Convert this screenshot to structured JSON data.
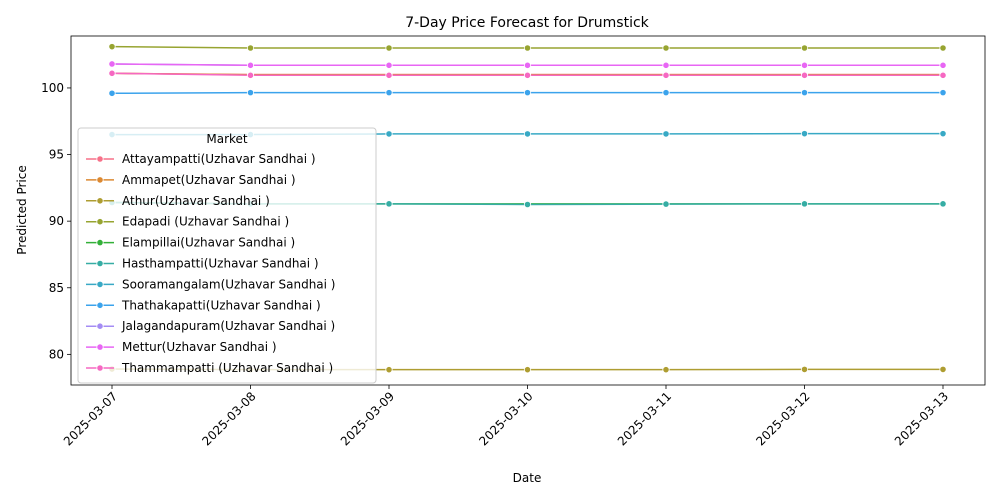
{
  "chart_data": {
    "type": "line",
    "title": "7-Day Price Forecast for Drumstick",
    "xlabel": "Date",
    "ylabel": "Predicted Price",
    "x": [
      "2025-03-07",
      "2025-03-08",
      "2025-03-09",
      "2025-03-10",
      "2025-03-11",
      "2025-03-12",
      "2025-03-13"
    ],
    "ylim": [
      77.7,
      103.9
    ],
    "yticks": [
      80,
      85,
      90,
      95,
      100
    ],
    "grid": false,
    "legend": {
      "title": "Market",
      "placement": "center-left"
    },
    "series": [
      {
        "name": "Attayampatti(Uzhavar Sandhai )",
        "color": "#f77189",
        "values": [
          101.1,
          101.0,
          101.0,
          101.0,
          101.0,
          101.0,
          101.0
        ]
      },
      {
        "name": "Ammapet(Uzhavar Sandhai )",
        "color": "#dc8932",
        "values": [
          101.1,
          101.0,
          101.0,
          101.0,
          101.0,
          101.0,
          101.0
        ]
      },
      {
        "name": "Athur(Uzhavar Sandhai )",
        "color": "#ae9d31",
        "values": [
          78.9,
          78.85,
          78.85,
          78.85,
          78.85,
          78.87,
          78.87
        ]
      },
      {
        "name": "Edapadi (Uzhavar Sandhai )",
        "color": "#97a431",
        "values": [
          103.1,
          103.0,
          103.0,
          103.0,
          103.0,
          103.0,
          103.0
        ]
      },
      {
        "name": "Elampillai(Uzhavar Sandhai )",
        "color": "#33b039",
        "values": [
          91.4,
          91.3,
          91.3,
          91.3,
          91.3,
          91.3,
          91.3
        ]
      },
      {
        "name": "Hasthampatti(Uzhavar Sandhai )",
        "color": "#36ada4",
        "values": [
          91.4,
          91.3,
          91.3,
          91.25,
          91.28,
          91.3,
          91.3
        ]
      },
      {
        "name": "Sooramangalam(Uzhavar Sandhai )",
        "color": "#38a9c5",
        "values": [
          96.5,
          96.5,
          96.55,
          96.55,
          96.55,
          96.57,
          96.57
        ]
      },
      {
        "name": "Thathakapatti(Uzhavar Sandhai )",
        "color": "#3ba3ec",
        "values": [
          99.6,
          99.65,
          99.65,
          99.65,
          99.65,
          99.65,
          99.65
        ]
      },
      {
        "name": "Jalagandapuram(Uzhavar Sandhai )",
        "color": "#a48cf4",
        "values": [
          101.8,
          101.7,
          101.7,
          101.7,
          101.7,
          101.7,
          101.7
        ]
      },
      {
        "name": "Mettur(Uzhavar Sandhai )",
        "color": "#e866f4",
        "values": [
          101.8,
          101.7,
          101.7,
          101.7,
          101.7,
          101.7,
          101.7
        ]
      },
      {
        "name": "Thammampatti (Uzhavar Sandhai )",
        "color": "#f668c2",
        "values": [
          101.1,
          100.95,
          100.95,
          100.95,
          100.95,
          100.95,
          100.95
        ]
      }
    ]
  }
}
